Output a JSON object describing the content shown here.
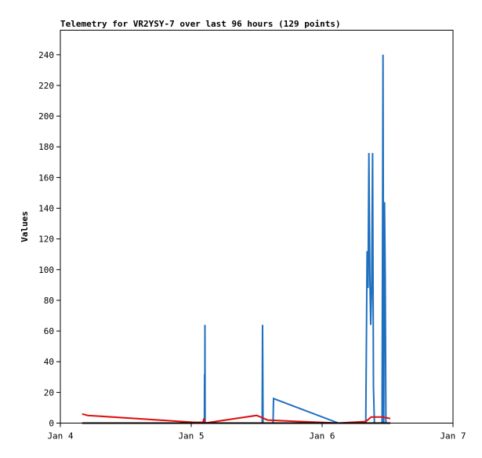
{
  "chart_data": {
    "type": "line",
    "title": "Telemetry for VR2YSY-7 over last 96 hours (129 points)",
    "xlabel": "",
    "ylabel": "Values",
    "x_ticks": [
      "Jan 4",
      "Jan 5",
      "Jan 6",
      "Jan 7"
    ],
    "xlim": [
      "2024-01-04T00:00",
      "2024-01-07T00:00"
    ],
    "y_ticks": [
      0,
      20,
      40,
      60,
      80,
      100,
      120,
      140,
      160,
      180,
      200,
      220,
      240
    ],
    "ylim": [
      0,
      256
    ],
    "grid": false,
    "series": [
      {
        "color": "#1f6fbf",
        "points": [
          [
            "2024-01-04T04:00",
            0
          ],
          [
            "2024-01-05T00:30",
            0
          ],
          [
            "2024-01-05T02:25",
            0
          ],
          [
            "2024-01-05T02:27",
            32
          ],
          [
            "2024-01-05T02:29",
            0
          ],
          [
            "2024-01-05T02:31",
            64
          ],
          [
            "2024-01-05T02:33",
            0
          ],
          [
            "2024-01-05T13:00",
            0
          ],
          [
            "2024-01-05T13:05",
            64
          ],
          [
            "2024-01-05T13:10",
            0
          ],
          [
            "2024-01-05T15:00",
            0
          ],
          [
            "2024-01-05T15:05",
            16
          ],
          [
            "2024-01-06T03:00",
            0
          ],
          [
            "2024-01-06T08:00",
            0
          ],
          [
            "2024-01-06T08:15",
            112
          ],
          [
            "2024-01-06T08:25",
            88
          ],
          [
            "2024-01-06T08:35",
            176
          ],
          [
            "2024-01-06T08:45",
            96
          ],
          [
            "2024-01-06T08:55",
            64
          ],
          [
            "2024-01-06T09:05",
            88
          ],
          [
            "2024-01-06T09:15",
            176
          ],
          [
            "2024-01-06T09:25",
            24
          ],
          [
            "2024-01-06T09:35",
            0
          ],
          [
            "2024-01-06T11:00",
            0
          ],
          [
            "2024-01-06T11:10",
            240
          ],
          [
            "2024-01-06T11:18",
            0
          ],
          [
            "2024-01-06T11:26",
            144
          ],
          [
            "2024-01-06T11:34",
            96
          ],
          [
            "2024-01-06T11:42",
            0
          ],
          [
            "2024-01-06T12:30",
            0
          ]
        ]
      },
      {
        "color": "#dd1111",
        "points": [
          [
            "2024-01-04T04:00",
            6
          ],
          [
            "2024-01-04T05:00",
            5
          ],
          [
            "2024-01-05T00:30",
            0.5
          ],
          [
            "2024-01-05T02:10",
            0.5
          ],
          [
            "2024-01-05T02:20",
            3
          ],
          [
            "2024-01-05T02:30",
            0
          ],
          [
            "2024-01-05T12:00",
            5
          ],
          [
            "2024-01-05T14:00",
            2
          ],
          [
            "2024-01-05T20:00",
            1
          ],
          [
            "2024-01-06T03:00",
            0
          ],
          [
            "2024-01-06T08:00",
            1
          ],
          [
            "2024-01-06T09:00",
            4
          ],
          [
            "2024-01-06T11:00",
            4
          ],
          [
            "2024-01-06T12:30",
            3
          ]
        ]
      },
      {
        "color": "#000000",
        "points": [
          [
            "2024-01-04T04:00",
            0
          ],
          [
            "2024-01-06T12:30",
            0
          ]
        ]
      }
    ]
  }
}
